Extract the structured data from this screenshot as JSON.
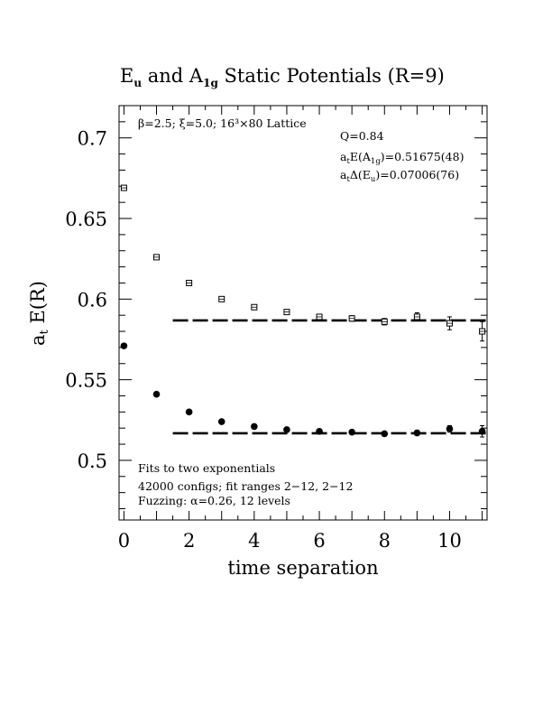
{
  "chart_data": {
    "type": "scatter",
    "title": {
      "main_1": "E",
      "sub_1": "u",
      "main_2": " and A",
      "sub_2": "1g",
      "main_3": " Static Potentials (R=9)"
    },
    "xlabel": "time separation",
    "ylabel": {
      "main": "a",
      "sub": "t",
      "rest": " E(R)"
    },
    "xlim": [
      -0.15,
      11.15
    ],
    "ylim": [
      0.463,
      0.72
    ],
    "x_ticks": [
      {
        "value": 0,
        "label": "0"
      },
      {
        "value": 2,
        "label": "2"
      },
      {
        "value": 4,
        "label": "4"
      },
      {
        "value": 6,
        "label": "6"
      },
      {
        "value": 8,
        "label": "8"
      },
      {
        "value": 10,
        "label": "10"
      }
    ],
    "y_ticks": [
      {
        "value": 0.5,
        "label": "0.5"
      },
      {
        "value": 0.55,
        "label": "0.55"
      },
      {
        "value": 0.6,
        "label": "0.6"
      },
      {
        "value": 0.65,
        "label": "0.65"
      },
      {
        "value": 0.7,
        "label": "0.7"
      }
    ],
    "series": [
      {
        "marker": "open-square",
        "x": [
          0,
          1,
          2,
          3,
          4,
          5,
          6,
          7,
          8,
          9,
          10,
          11
        ],
        "y": [
          0.669,
          0.626,
          0.61,
          0.6,
          0.595,
          0.592,
          0.589,
          0.588,
          0.586,
          0.589,
          0.585,
          0.58
        ],
        "err": [
          0.0008,
          0.0008,
          0.0008,
          0.0009,
          0.001,
          0.0012,
          0.0015,
          0.0017,
          0.002,
          0.0025,
          0.004,
          0.006
        ]
      },
      {
        "marker": "filled-circle",
        "x": [
          0,
          1,
          2,
          3,
          4,
          5,
          6,
          7,
          8,
          9,
          10,
          11
        ],
        "y": [
          0.571,
          0.541,
          0.53,
          0.524,
          0.521,
          0.519,
          0.518,
          0.5175,
          0.5165,
          0.517,
          0.5195,
          0.518
        ],
        "err": [
          0.0005,
          0.0005,
          0.0005,
          0.0005,
          0.0006,
          0.0007,
          0.0008,
          0.001,
          0.0012,
          0.0015,
          0.002,
          0.0035
        ]
      }
    ],
    "fit_lines": [
      {
        "x_start": 1.5,
        "x_end": 11.15,
        "y": 0.5868
      },
      {
        "x_start": 1.5,
        "x_end": 11.15,
        "y": 0.5168
      }
    ],
    "annotations": {
      "lattice": "β=2.5; ξ=5.0; 16³×80 Lattice",
      "q_value": "Q=0.84",
      "energy_prefix": "a",
      "energy_prefix_sub": "t",
      "energy_mid": "E(A",
      "energy_sub": "1g",
      "energy_value": ")=0.51675(48)",
      "gap_prefix": "a",
      "gap_prefix_sub": "t",
      "gap_mid": "Δ(E",
      "gap_sub": "u",
      "gap_value": ")=0.07006(76)",
      "fit_line_1": "Fits to two exponentials",
      "fit_line_2": "42000 configs; fit ranges 2−12, 2−12",
      "fit_line_3": "Fuzzing: α=0.26, 12 levels"
    }
  }
}
